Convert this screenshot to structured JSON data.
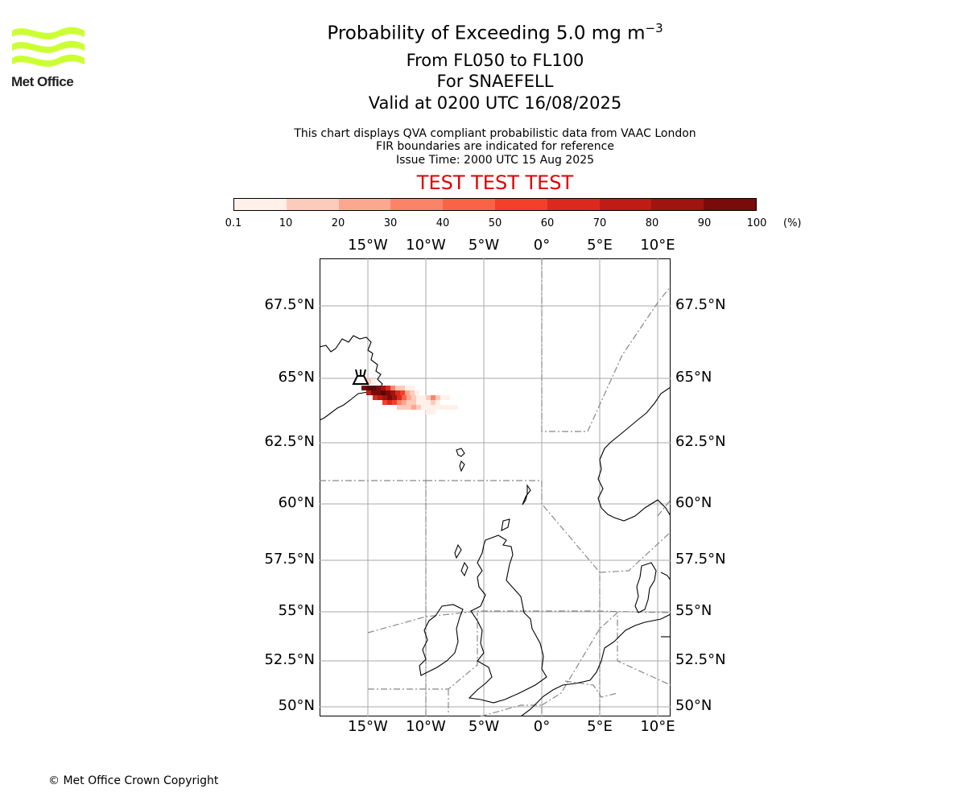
{
  "header": {
    "title_main": "Probability of Exceeding 5.0 mg m",
    "title_sup": "−3",
    "flight_levels": "From FL050 to FL100",
    "volcano": "For SNAEFELL",
    "valid": "Valid at 0200 UTC 16/08/2025",
    "desc1": "This chart displays QVA compliant probabilistic data from VAAC London",
    "desc2": "FIR boundaries are indicated for reference",
    "issue": "Issue Time: 2000 UTC 15 Aug 2025",
    "test_banner": "TEST TEST TEST"
  },
  "logo": {
    "text": "Met Office",
    "color": "#ccff33"
  },
  "colorbar": {
    "ticks": [
      "0.1",
      "10",
      "20",
      "30",
      "40",
      "50",
      "60",
      "70",
      "80",
      "90",
      "100"
    ],
    "unit": "(%)",
    "colors": [
      "#fff0ea",
      "#fdcbbb",
      "#fca891",
      "#fb8468",
      "#f96446",
      "#f3402b",
      "#db2a1d",
      "#be1c14",
      "#a0140f",
      "#7a0b0b",
      "#5a0704"
    ]
  },
  "map": {
    "lon_labels": [
      "15°W",
      "10°W",
      "5°W",
      "0°",
      "5°E",
      "10°E"
    ],
    "lat_labels": [
      "67.5°N",
      "65°N",
      "62.5°N",
      "60°N",
      "57.5°N",
      "55°N",
      "52.5°N",
      "50°N"
    ],
    "grid_color": "#aaaaaa"
  },
  "footer": {
    "copyright": "© Met Office Crown Copyright"
  }
}
